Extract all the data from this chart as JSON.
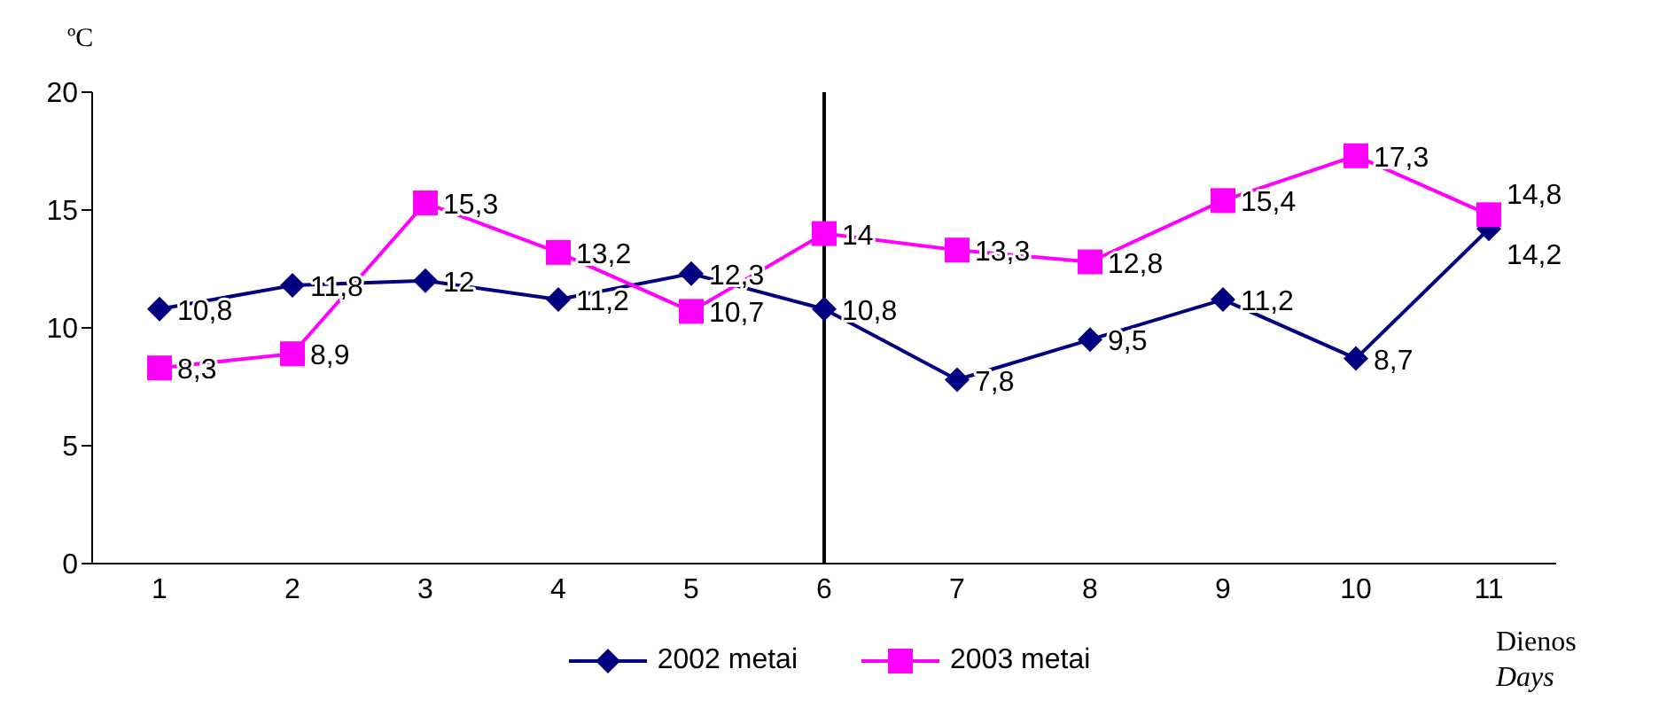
{
  "chart_data": {
    "type": "line",
    "ylabel": "ºC",
    "xlabel": "Dienos",
    "annotations": [
      "Days"
    ],
    "categories": [
      "1",
      "2",
      "3",
      "4",
      "5",
      "6",
      "7",
      "8",
      "9",
      "10",
      "11"
    ],
    "series": [
      {
        "name": "2002 metai",
        "color": "#000080",
        "marker": "diamond",
        "values": [
          10.8,
          11.8,
          12,
          11.2,
          12.3,
          10.8,
          7.8,
          9.5,
          11.2,
          8.7,
          14.2
        ],
        "value_labels": [
          "10,8",
          "11,8",
          "12",
          "11,2",
          "12,3",
          "10,8",
          "7,8",
          "9,5",
          "11,2",
          "8,7",
          "14,2"
        ]
      },
      {
        "name": "2003 metai",
        "color": "#ff00ff",
        "marker": "square",
        "values": [
          8.3,
          8.9,
          15.3,
          13.2,
          10.7,
          14,
          13.3,
          12.8,
          15.4,
          17.3,
          14.8
        ],
        "value_labels": [
          "8,3",
          "8,9",
          "15,3",
          "13,2",
          "10,7",
          "14",
          "13,3",
          "12,8",
          "15,4",
          "17,3",
          "14,8"
        ]
      }
    ],
    "ylim": [
      0,
      20
    ],
    "yticks": [
      0,
      5,
      10,
      15,
      20
    ],
    "grid": false,
    "legend": "bottom",
    "ref_lines": [
      {
        "axis": "x",
        "value": "6",
        "color": "#000000"
      }
    ]
  }
}
